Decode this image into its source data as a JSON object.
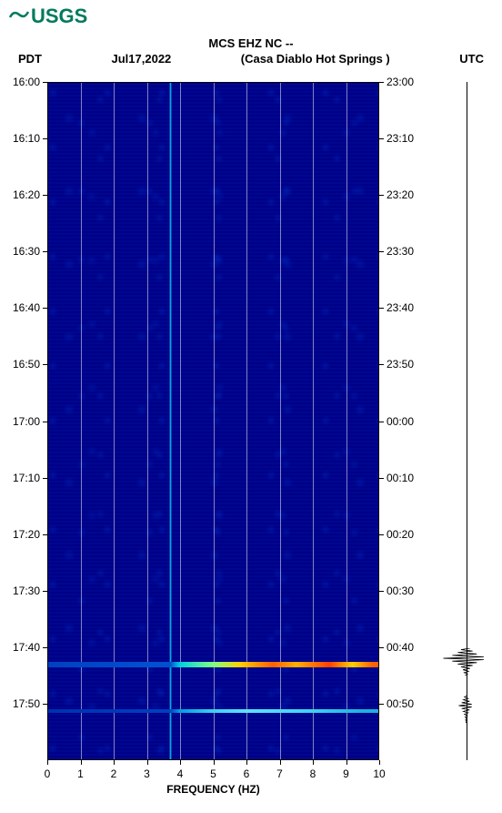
{
  "logo_text": "USGS",
  "header": {
    "title": "MCS EHZ NC --",
    "left_tz": "PDT",
    "date": "Jul17,2022",
    "station": "(Casa Diablo Hot Springs )",
    "right_tz": "UTC"
  },
  "spectrogram": {
    "type": "spectrogram",
    "background_color": "#000088",
    "noise_color": "#0030b0",
    "grid_color": "rgba(255,255,255,0.5)",
    "x_axis": {
      "label": "FREQUENCY (HZ)",
      "min": 0,
      "max": 10,
      "ticks": [
        0,
        1,
        2,
        3,
        4,
        5,
        6,
        7,
        8,
        9,
        10
      ],
      "fontsize": 12
    },
    "y_left": {
      "label_tz": "PDT",
      "ticks": [
        "16:00",
        "16:10",
        "16:20",
        "16:30",
        "16:40",
        "16:50",
        "17:00",
        "17:10",
        "17:20",
        "17:30",
        "17:40",
        "17:50"
      ],
      "positions_pct": [
        0,
        8.33,
        16.67,
        25,
        33.33,
        41.67,
        50,
        58.33,
        66.67,
        75,
        83.33,
        91.67
      ]
    },
    "y_right": {
      "label_tz": "UTC",
      "ticks": [
        "23:00",
        "23:10",
        "23:20",
        "23:30",
        "23:40",
        "23:50",
        "00:00",
        "00:10",
        "00:20",
        "00:30",
        "00:40",
        "00:50"
      ],
      "positions_pct": [
        0,
        8.33,
        16.67,
        25,
        33.33,
        41.67,
        50,
        58.33,
        66.67,
        75,
        83.33,
        91.67
      ]
    },
    "bright_vertical_line_hz": 3.7,
    "events": [
      {
        "time_pct": 85.5,
        "type": "strong",
        "colors": [
          "#00d0e0",
          "#80ff80",
          "#ffd000",
          "#ff6000",
          "#ff4000"
        ]
      },
      {
        "time_pct": 92.5,
        "type": "weak",
        "colors": [
          "#00a0e0",
          "#40d0f0",
          "#60e0ff"
        ]
      }
    ]
  },
  "seismogram": {
    "baseline_color": "#000000",
    "events": [
      {
        "time_pct": 85.5,
        "amplitude": 25
      },
      {
        "time_pct": 92.5,
        "amplitude": 8
      }
    ]
  }
}
